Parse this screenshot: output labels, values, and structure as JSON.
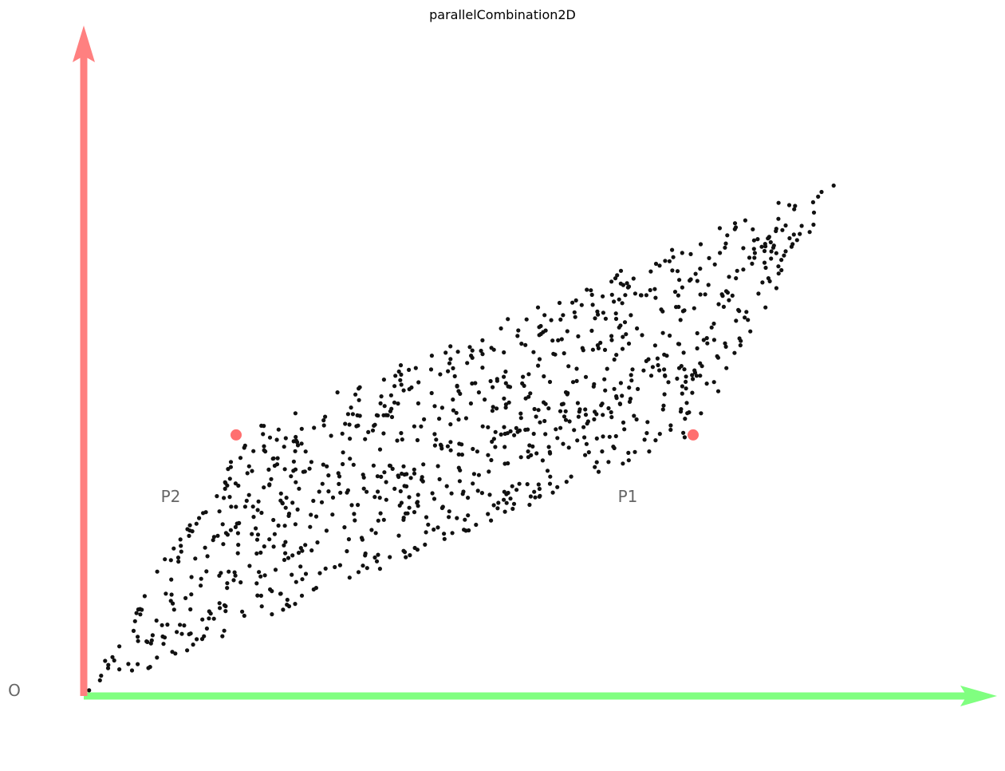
{
  "chart_data": {
    "type": "scatter",
    "title": "parallelCombination2D",
    "xlabel": "",
    "ylabel": "",
    "xlim": [
      0,
      1.0
    ],
    "ylim": [
      0,
      0.7
    ],
    "grid": false,
    "axes": {
      "origin_label": "O",
      "x_axis_color": "#80ff80",
      "y_axis_color": "#ff8080"
    },
    "key_points": [
      {
        "label": "P1",
        "x": 0.6667,
        "y": 0.2857,
        "color": "#ff5f5f"
      },
      {
        "label": "P2",
        "x": 0.1667,
        "y": 0.2857,
        "color": "#ff5f5f"
      }
    ],
    "samples": {
      "color": "#111111",
      "count": 1000,
      "distribution": "uniform in parallelogram spanned by O, P1, P2"
    }
  }
}
